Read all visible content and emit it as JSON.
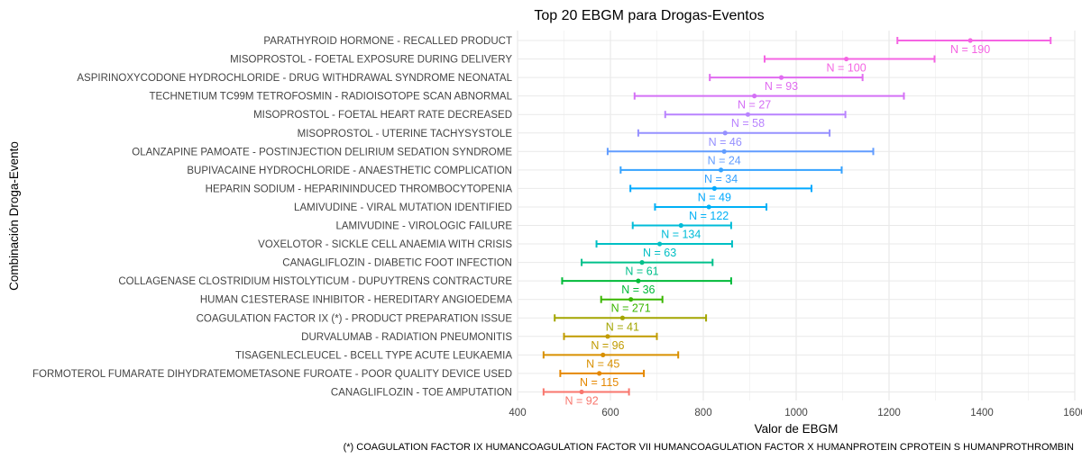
{
  "chart_data": {
    "type": "forest",
    "title": "Top 20 EBGM para Drogas-Eventos",
    "xlabel": "Valor de EBGM",
    "ylabel": "Combinación Droga-Evento",
    "caption": "(*) COAGULATION FACTOR IX HUMANCOAGULATION FACTOR VII HUMANCOAGULATION FACTOR X HUMANPROTEIN CPROTEIN S HUMANPROTHROMBIN",
    "xlim": [
      400,
      1600
    ],
    "xticks": [
      400,
      600,
      800,
      1000,
      1200,
      1400,
      1600
    ],
    "grid": true,
    "legend": "none",
    "rows": [
      {
        "label": "PARATHYROID HORMONE - RECALLED PRODUCT",
        "ebgm": 1375,
        "lower": 1218,
        "upper": 1548,
        "n_label": "N = 190",
        "color": "#F564E3"
      },
      {
        "label": "MISOPROSTOL - FOETAL EXPOSURE DURING DELIVERY",
        "ebgm": 1108,
        "lower": 932,
        "upper": 1298,
        "n_label": "N = 100",
        "color": "#F564E3"
      },
      {
        "label": "ASPIRINOXYCODONE HYDROCHLORIDE - DRUG WITHDRAWAL SYNDROME NEONATAL",
        "ebgm": 968,
        "lower": 814,
        "upper": 1143,
        "n_label": "N = 93",
        "color": "#E06BF0"
      },
      {
        "label": "TECHNETIUM TC99M TETROFOSMIN - RADIOISOTOPE SCAN ABNORMAL",
        "ebgm": 910,
        "lower": 652,
        "upper": 1232,
        "n_label": "N = 27",
        "color": "#D470F6"
      },
      {
        "label": "MISOPROSTOL - FOETAL HEART RATE DECREASED",
        "ebgm": 896,
        "lower": 718,
        "upper": 1106,
        "n_label": "N = 58",
        "color": "#B983FF"
      },
      {
        "label": "MISOPROSTOL - UTERINE TACHYSYSTOLE",
        "ebgm": 847,
        "lower": 660,
        "upper": 1072,
        "n_label": "N = 46",
        "color": "#9590FF"
      },
      {
        "label": "OLANZAPINE PAMOATE - POSTINJECTION DELIRIUM SEDATION SYNDROME",
        "ebgm": 845,
        "lower": 594,
        "upper": 1166,
        "n_label": "N = 24",
        "color": "#619CFF"
      },
      {
        "label": "BUPIVACAINE HYDROCHLORIDE - ANAESTHETIC COMPLICATION",
        "ebgm": 838,
        "lower": 622,
        "upper": 1098,
        "n_label": "N = 34",
        "color": "#35A2FF"
      },
      {
        "label": "HEPARIN SODIUM - HEPARININDUCED THROMBOCYTOPENIA",
        "ebgm": 824,
        "lower": 643,
        "upper": 1033,
        "n_label": "N = 49",
        "color": "#00A9FF"
      },
      {
        "label": "LAMIVUDINE - VIRAL MUTATION IDENTIFIED",
        "ebgm": 812,
        "lower": 696,
        "upper": 936,
        "n_label": "N = 122",
        "color": "#00B0F6"
      },
      {
        "label": "LAMIVUDINE - VIROLOGIC FAILURE",
        "ebgm": 752,
        "lower": 648,
        "upper": 860,
        "n_label": "N = 134",
        "color": "#00BCD8"
      },
      {
        "label": "VOXELOTOR - SICKLE CELL ANAEMIA WITH CRISIS",
        "ebgm": 706,
        "lower": 570,
        "upper": 862,
        "n_label": "N = 63",
        "color": "#00BFC4"
      },
      {
        "label": "CANAGLIFLOZIN - DIABETIC FOOT INFECTION",
        "ebgm": 668,
        "lower": 538,
        "upper": 820,
        "n_label": "N = 61",
        "color": "#00C08B"
      },
      {
        "label": "COLLAGENASE CLOSTRIDIUM HISTOLYTICUM - DUPUYTRENS CONTRACTURE",
        "ebgm": 660,
        "lower": 496,
        "upper": 860,
        "n_label": "N = 36",
        "color": "#00BA38"
      },
      {
        "label": "HUMAN C1ESTERASE INHIBITOR - HEREDITARY ANGIOEDEMA",
        "ebgm": 644,
        "lower": 580,
        "upper": 712,
        "n_label": "N = 271",
        "color": "#39B600"
      },
      {
        "label": "COAGULATION FACTOR IX (*) - PRODUCT PREPARATION ISSUE",
        "ebgm": 626,
        "lower": 480,
        "upper": 806,
        "n_label": "N = 41",
        "color": "#A3A500"
      },
      {
        "label": "DURVALUMAB - RADIATION PNEUMONITIS",
        "ebgm": 594,
        "lower": 500,
        "upper": 700,
        "n_label": "N = 96",
        "color": "#C09B00"
      },
      {
        "label": "TISAGENLECLEUCEL - BCELL TYPE ACUTE LEUKAEMIA",
        "ebgm": 584,
        "lower": 456,
        "upper": 746,
        "n_label": "N = 45",
        "color": "#D89000"
      },
      {
        "label": "FORMOTEROL FUMARATE DIHYDRATEMOMETASONE FUROATE - POOR QUALITY DEVICE USED",
        "ebgm": 576,
        "lower": 492,
        "upper": 672,
        "n_label": "N = 115",
        "color": "#E58700"
      },
      {
        "label": "CANAGLIFLOZIN - TOE AMPUTATION",
        "ebgm": 538,
        "lower": 456,
        "upper": 640,
        "n_label": "N = 92",
        "color": "#F8766D"
      }
    ]
  }
}
